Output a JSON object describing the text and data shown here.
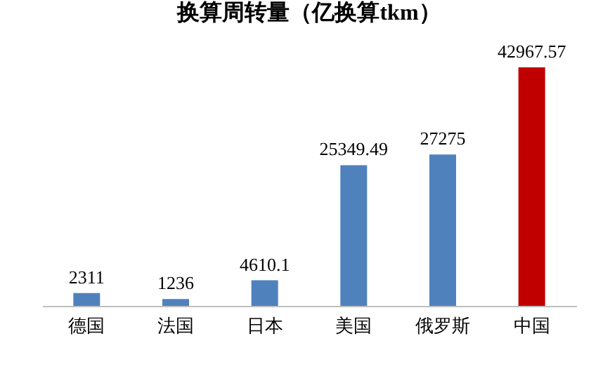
{
  "chart_data": {
    "type": "bar",
    "title": "换算周转量（亿换算tkm）",
    "categories": [
      "德国",
      "法国",
      "日本",
      "美国",
      "俄罗斯",
      "中国"
    ],
    "values": [
      2311,
      1236,
      4610.1,
      25349.49,
      27275,
      42967.57
    ],
    "colors": [
      "#4f81bd",
      "#4f81bd",
      "#4f81bd",
      "#4f81bd",
      "#4f81bd",
      "#c00000"
    ],
    "data_labels": true
  }
}
